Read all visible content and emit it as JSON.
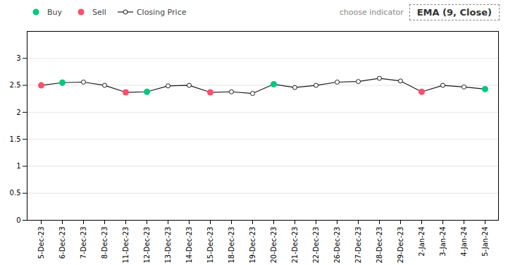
{
  "chart_data": {
    "type": "line",
    "categories": [
      "5-Dec-23",
      "6-Dec-23",
      "7-Dec-23",
      "8-Dec-23",
      "11-Dec-23",
      "12-Dec-23",
      "13-Dec-23",
      "14-Dec-23",
      "15-Dec-23",
      "18-Dec-23",
      "19-Dec-23",
      "20-Dec-23",
      "21-Dec-23",
      "22-Dec-23",
      "26-Dec-23",
      "27-Dec-23",
      "28-Dec-23",
      "29-Dec-23",
      "2-Jan-24",
      "3-Jan-24",
      "4-Jan-24",
      "5-Jan-24"
    ],
    "series": [
      {
        "name": "Buy",
        "type": "scatter",
        "marker": "circle",
        "color": "#00C87C",
        "values": [
          null,
          2.55,
          null,
          null,
          null,
          2.38,
          null,
          null,
          null,
          null,
          null,
          2.52,
          null,
          null,
          null,
          null,
          null,
          null,
          null,
          null,
          null,
          2.43
        ]
      },
      {
        "name": "Sell",
        "type": "scatter",
        "marker": "circle",
        "color": "#FF4D6A",
        "values": [
          2.5,
          null,
          null,
          null,
          2.37,
          null,
          null,
          null,
          2.37,
          null,
          null,
          null,
          null,
          null,
          null,
          null,
          null,
          null,
          2.38,
          null,
          null,
          null
        ]
      },
      {
        "name": "Closing Price",
        "type": "line",
        "marker": "circle",
        "color": "#1a1a1a",
        "values": [
          2.5,
          2.55,
          2.56,
          2.5,
          2.37,
          2.38,
          2.49,
          2.5,
          2.37,
          2.38,
          2.35,
          2.52,
          2.46,
          2.5,
          2.56,
          2.57,
          2.63,
          2.58,
          2.38,
          2.5,
          2.47,
          2.43
        ]
      }
    ],
    "annotations": [
      "choose indicator",
      "EMA (9, Close)"
    ],
    "ylim": [
      0,
      3.5
    ],
    "yticks": [
      0,
      0.5,
      1,
      1.5,
      2,
      2.5,
      3
    ],
    "grid": true,
    "legend": "top"
  }
}
